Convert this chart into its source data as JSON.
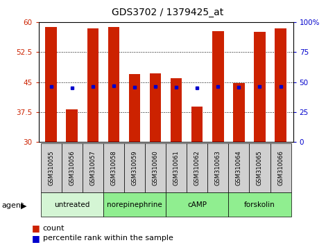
{
  "title": "GDS3702 / 1379425_at",
  "samples": [
    "GSM310055",
    "GSM310056",
    "GSM310057",
    "GSM310058",
    "GSM310059",
    "GSM310060",
    "GSM310061",
    "GSM310062",
    "GSM310063",
    "GSM310064",
    "GSM310065",
    "GSM310066"
  ],
  "count_values": [
    58.8,
    38.2,
    58.5,
    58.8,
    47.0,
    47.2,
    46.0,
    38.8,
    57.8,
    44.8,
    57.5,
    58.5
  ],
  "percentile_values": [
    46.5,
    45.0,
    46.5,
    47.0,
    45.8,
    46.2,
    46.0,
    45.0,
    46.5,
    45.8,
    46.5,
    46.5
  ],
  "count_base": 30,
  "ylim_left": [
    30,
    60
  ],
  "ylim_right": [
    0,
    100
  ],
  "yticks_left": [
    30,
    37.5,
    45,
    52.5,
    60
  ],
  "yticks_right": [
    0,
    25,
    50,
    75,
    100
  ],
  "ytick_labels_left": [
    "30",
    "37.5",
    "45",
    "52.5",
    "60"
  ],
  "ytick_labels_right": [
    "0",
    "25",
    "50",
    "75",
    "100%"
  ],
  "group_defs": [
    [
      0,
      3,
      "untreated",
      "#d4f5d4"
    ],
    [
      3,
      6,
      "norepinephrine",
      "#90ee90"
    ],
    [
      6,
      9,
      "cAMP",
      "#90ee90"
    ],
    [
      9,
      12,
      "forskolin",
      "#90ee90"
    ]
  ],
  "bar_color": "#cc2200",
  "dot_color": "#0000cc",
  "left_tick_color": "#cc2200",
  "right_tick_color": "#0000cc",
  "legend_count_label": "count",
  "legend_pct_label": "percentile rank within the sample",
  "figsize": [
    4.83,
    3.54
  ],
  "dpi": 100
}
